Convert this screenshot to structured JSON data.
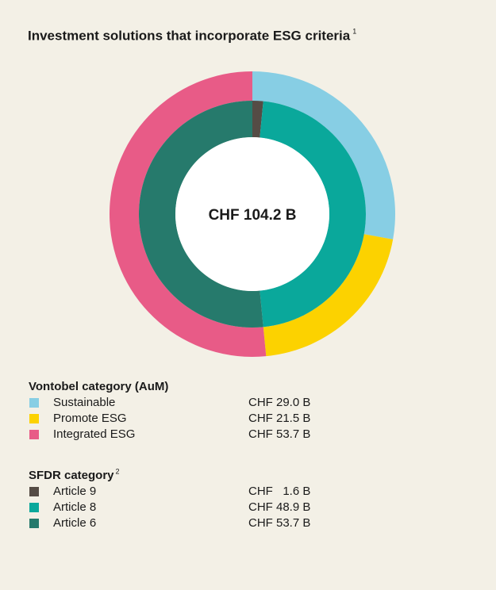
{
  "chart_data": {
    "type": "donut",
    "title": "Investment solutions that incorporate ESG criteria",
    "title_note": "1",
    "center_label": "CHF 104.2 B",
    "series": [
      {
        "name": "Vontobel category (AuM)",
        "note": null,
        "categories": [
          "Sustainable",
          "Promote ESG",
          "Integrated ESG"
        ],
        "colors": [
          "#87cee4",
          "#fcd200",
          "#e85b87"
        ],
        "values": [
          29.0,
          21.5,
          53.7
        ],
        "value_labels": [
          "CHF 29.0 B",
          "CHF 21.5 B",
          "CHF 53.7 B"
        ]
      },
      {
        "name": "SFDR category",
        "note": "2",
        "categories": [
          "Article 9",
          "Article 8",
          "Article 6"
        ],
        "colors": [
          "#554c45",
          "#0aa89b",
          "#267a6c"
        ],
        "values": [
          1.6,
          48.9,
          53.7
        ],
        "value_labels": [
          "CHF   1.6 B",
          "CHF 48.9 B",
          "CHF 53.7 B"
        ]
      }
    ]
  }
}
